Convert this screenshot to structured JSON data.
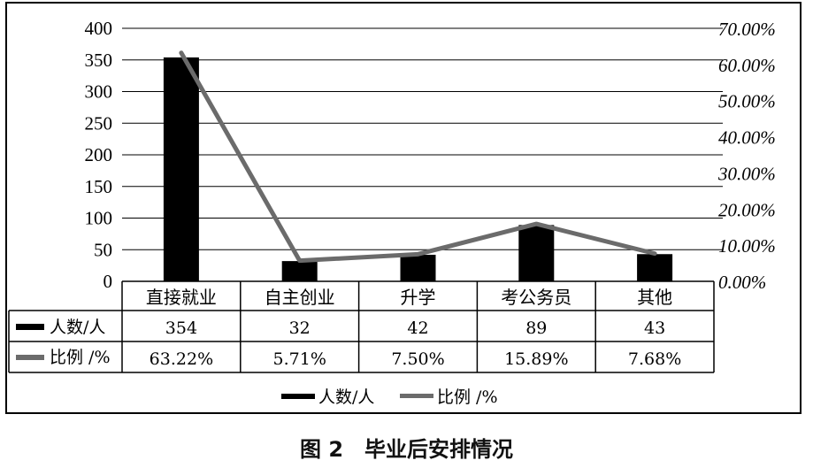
{
  "chart_data": {
    "type": "bar+line",
    "categories": [
      "直接就业",
      "自主创业",
      "升学",
      "考公务员",
      "其他"
    ],
    "series": [
      {
        "name": "人数/人",
        "kind": "bar",
        "axis": "left",
        "values": [
          354,
          32,
          42,
          89,
          43
        ]
      },
      {
        "name": "比例 /%",
        "kind": "line",
        "axis": "right",
        "values": [
          63.22,
          5.71,
          7.5,
          15.89,
          7.68
        ]
      }
    ],
    "left_axis": {
      "min": 0,
      "max": 400,
      "step": 50,
      "ticks": [
        "0",
        "50",
        "100",
        "150",
        "200",
        "250",
        "300",
        "350",
        "400"
      ]
    },
    "right_axis": {
      "min": 0,
      "max": 70,
      "step": 10,
      "ticks": [
        "0.00%",
        "10.00%",
        "20.00%",
        "30.00%",
        "40.00%",
        "50.00%",
        "60.00%",
        "70.00%"
      ]
    },
    "table": {
      "rows": [
        {
          "label": "人数/人",
          "values": [
            "354",
            "32",
            "42",
            "89",
            "43"
          ]
        },
        {
          "label": "比例 /%",
          "values": [
            "63.22%",
            "5.71%",
            "7.50%",
            "15.89%",
            "7.68%"
          ]
        }
      ]
    },
    "legend": {
      "position": "bottom",
      "items": [
        "人数/人",
        "比例 /%"
      ]
    },
    "colors": {
      "bar": "#000000",
      "line": "#6b6b6b"
    },
    "grid": true
  },
  "caption": "图 2　毕业后安排情况"
}
